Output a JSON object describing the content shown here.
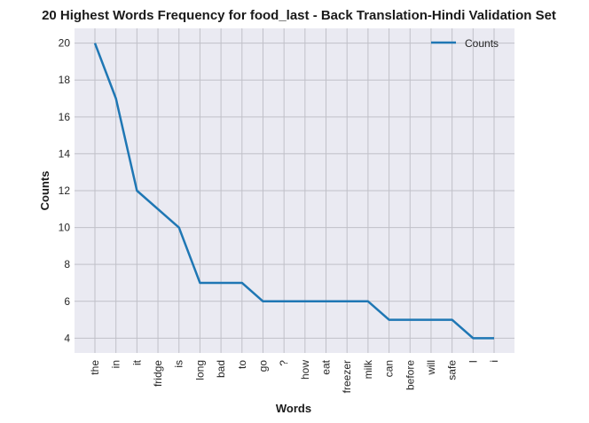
{
  "chart_data": {
    "type": "line",
    "title": "20 Highest Words Frequency for food_last - Back Translation-Hindi Validation Set",
    "xlabel": "Words",
    "ylabel": "Counts",
    "categories": [
      "the",
      "in",
      "it",
      "fridge",
      "is",
      "long",
      "bad",
      "to",
      "go",
      "?",
      "how",
      "eat",
      "freezer",
      "milk",
      "can",
      "before",
      "will",
      "safe",
      "I",
      "i"
    ],
    "series": [
      {
        "name": "Counts",
        "values": [
          20,
          17,
          12,
          11,
          10,
          7,
          7,
          7,
          6,
          6,
          6,
          6,
          6,
          6,
          5,
          5,
          5,
          5,
          4,
          4
        ]
      }
    ],
    "yticks": [
      4,
      6,
      8,
      10,
      12,
      14,
      16,
      18,
      20
    ],
    "ylim": [
      3.2,
      20.8
    ],
    "grid": true,
    "legend_position": "top-right",
    "colors": {
      "line": "#1f77b4",
      "plot_background": "#eaeaf2",
      "grid": "#c0c0c8"
    }
  }
}
